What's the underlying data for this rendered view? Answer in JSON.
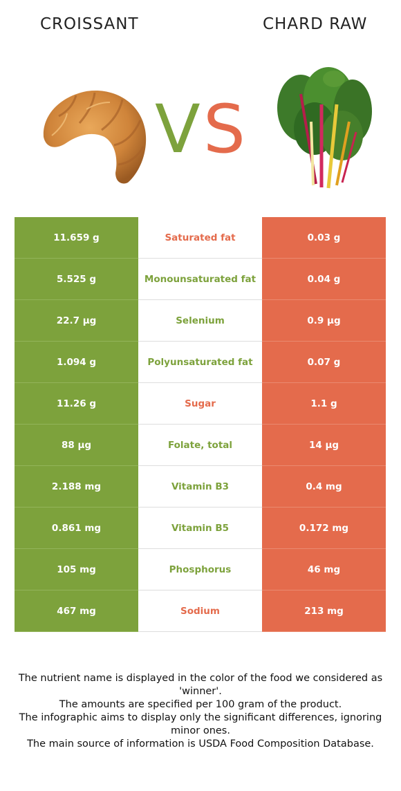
{
  "header": {
    "left_food": "CROISSANT",
    "right_food": "CHARD RAW",
    "vs_text": "VS"
  },
  "colors": {
    "left_accent": "#7da23c",
    "right_accent": "#e46b4c"
  },
  "rows": [
    {
      "left": "11.659 g",
      "nutrient": "Saturated fat",
      "right": "0.03 g",
      "winner": "right"
    },
    {
      "left": "5.525 g",
      "nutrient": "Monounsaturated fat",
      "right": "0.04 g",
      "winner": "left"
    },
    {
      "left": "22.7 µg",
      "nutrient": "Selenium",
      "right": "0.9 µg",
      "winner": "left"
    },
    {
      "left": "1.094 g",
      "nutrient": "Polyunsaturated fat",
      "right": "0.07 g",
      "winner": "left"
    },
    {
      "left": "11.26 g",
      "nutrient": "Sugar",
      "right": "1.1 g",
      "winner": "right"
    },
    {
      "left": "88 µg",
      "nutrient": "Folate, total",
      "right": "14 µg",
      "winner": "left"
    },
    {
      "left": "2.188 mg",
      "nutrient": "Vitamin B3",
      "right": "0.4 mg",
      "winner": "left"
    },
    {
      "left": "0.861 mg",
      "nutrient": "Vitamin B5",
      "right": "0.172 mg",
      "winner": "left"
    },
    {
      "left": "105 mg",
      "nutrient": "Phosphorus",
      "right": "46 mg",
      "winner": "left"
    },
    {
      "left": "467 mg",
      "nutrient": "Sodium",
      "right": "213 mg",
      "winner": "right"
    }
  ],
  "footer": {
    "line1": "The nutrient name is displayed in the color of the food we considered as 'winner'.",
    "line2": "The amounts are specified per 100 gram of the product.",
    "line3": "The infographic aims to display only the significant differences, ignoring minor ones.",
    "line4": "The main source of information is USDA Food Composition Database."
  }
}
